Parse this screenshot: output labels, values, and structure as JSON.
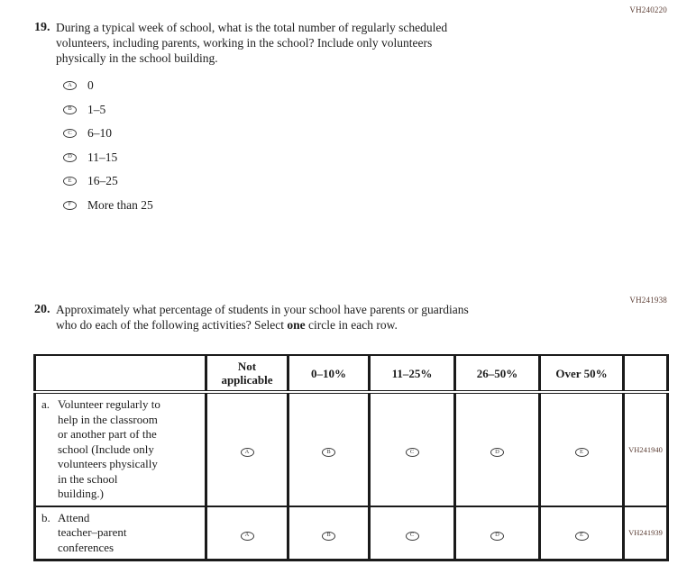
{
  "colors": {
    "code_text": "#5e4037",
    "body_text": "#1c1c1c",
    "table_border": "#1a1a1a"
  },
  "q19": {
    "code": "VH240220",
    "number": "19.",
    "text": "During a typical week of school, what is the total number of regularly scheduled\nvolunteers, including parents, working in the school? Include only volunteers\nphysically in the school building.",
    "options": [
      {
        "letter": "A",
        "label": "0"
      },
      {
        "letter": "B",
        "label": "1–5"
      },
      {
        "letter": "C",
        "label": "6–10"
      },
      {
        "letter": "D",
        "label": "11–15"
      },
      {
        "letter": "E",
        "label": "16–25"
      },
      {
        "letter": "F",
        "label": "More than 25"
      }
    ]
  },
  "q20": {
    "code": "VH241938",
    "number": "20.",
    "text_before_bold": "Approximately what percentage of students in your school have parents or guardians\nwho do each of the following activities? Select ",
    "bold_word": "one",
    "text_after_bold": " circle in each row.",
    "table": {
      "headers": {
        "stub": "",
        "col1": "Not\napplicable",
        "col2": "0–10%",
        "col3": "11–25%",
        "col4": "26–50%",
        "col5": "Over 50%",
        "code": ""
      },
      "rows": [
        {
          "letter": "a.",
          "label": "Volunteer regularly to\nhelp in the classroom\nor another part of the\nschool (Include only\nvolunteers physically\nin the school\nbuilding.)",
          "bubbles": [
            "A",
            "B",
            "C",
            "D",
            "E"
          ],
          "code": "VH241940"
        },
        {
          "letter": "b.",
          "label": "Attend\nteacher–parent\nconferences",
          "bubbles": [
            "A",
            "B",
            "C",
            "D",
            "E"
          ],
          "code": "VH241939"
        }
      ]
    }
  }
}
